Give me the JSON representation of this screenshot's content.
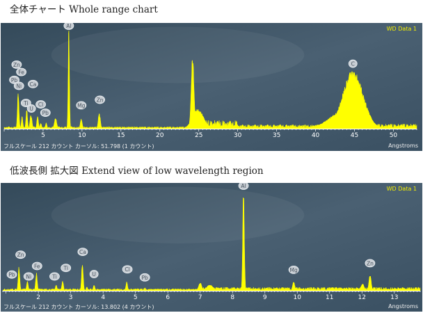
{
  "panels": [
    {
      "caption": "全体チャート Whole range chart",
      "tag": "WD Data 1",
      "status": "フルスケール 212 カウント カーソル: 51.798 (1 カウント)",
      "units": "Angstroms",
      "chart_data": {
        "type": "line",
        "xlim": [
          0,
          53
        ],
        "ylim": [
          0,
          212
        ],
        "x_ticks": [
          5,
          10,
          15,
          20,
          25,
          30,
          35,
          40,
          45,
          50
        ],
        "series": [
          {
            "peaks": [
              {
                "x": 1.8,
                "y": 75,
                "w": 0.1
              },
              {
                "x": 2.3,
                "y": 25,
                "w": 0.1
              },
              {
                "x": 2.9,
                "y": 40,
                "w": 0.1
              },
              {
                "x": 3.4,
                "y": 28,
                "w": 0.1
              },
              {
                "x": 3.5,
                "y": 25,
                "w": 0.1
              },
              {
                "x": 4.3,
                "y": 28,
                "w": 0.1
              },
              {
                "x": 4.7,
                "y": 12,
                "w": 0.1
              },
              {
                "x": 5.4,
                "y": 12,
                "w": 0.1
              },
              {
                "x": 6.6,
                "y": 22,
                "w": 0.15
              },
              {
                "x": 8.3,
                "y": 212,
                "w": 0.08
              },
              {
                "x": 9.9,
                "y": 20,
                "w": 0.12
              },
              {
                "x": 12.2,
                "y": 32,
                "w": 0.12
              },
              {
                "x": 12.3,
                "y": 24,
                "w": 0.1
              },
              {
                "x": 24.2,
                "y": 150,
                "w": 0.18
              },
              {
                "x": 24.9,
                "y": 40,
                "w": 0.7
              },
              {
                "x": 44.8,
                "y": 118,
                "w": 1.3
              },
              {
                "x": 44.0,
                "y": 40,
                "w": 2.0
              }
            ],
            "base": [
              {
                "from": 0,
                "to": 23.9,
                "level": 3
              },
              {
                "from": 24,
                "to": 30,
                "level": 12
              },
              {
                "from": 30,
                "to": 41,
                "level": 6
              },
              {
                "from": 41,
                "to": 53,
                "level": 7
              }
            ]
          }
        ],
        "labels": [
          {
            "text": "Zn",
            "x": 1.6,
            "y": 128
          },
          {
            "text": "Fe",
            "x": 2.2,
            "y": 112
          },
          {
            "text": "Pb",
            "x": 1.3,
            "y": 95
          },
          {
            "text": "Ni",
            "x": 1.9,
            "y": 82
          },
          {
            "text": "Ca",
            "x": 3.7,
            "y": 86
          },
          {
            "text": "Ti",
            "x": 2.8,
            "y": 45
          },
          {
            "text": "U",
            "x": 3.5,
            "y": 33
          },
          {
            "text": "Cl",
            "x": 4.7,
            "y": 42
          },
          {
            "text": "Pb",
            "x": 5.3,
            "y": 24
          },
          {
            "text": "Al",
            "x": 8.3,
            "y": 212
          },
          {
            "text": "Mg",
            "x": 9.9,
            "y": 40
          },
          {
            "text": "Zn",
            "x": 12.3,
            "y": 52
          },
          {
            "text": "C",
            "x": 44.8,
            "y": 130
          }
        ]
      }
    },
    {
      "caption": "低波長側 拡大図 Extend view of low wavelength region",
      "tag": "WD Data 1",
      "status": "フルスケール 212 カウント カーソル: 13.802 (4 カウント)",
      "units": "Angstroms",
      "chart_data": {
        "type": "line",
        "xlim": [
          0.9,
          13.8
        ],
        "ylim": [
          0,
          212
        ],
        "x_ticks": [
          2,
          3,
          4,
          5,
          6,
          7,
          8,
          9,
          10,
          11,
          12,
          13
        ],
        "series": [
          {
            "peaks": [
              {
                "x": 1.4,
                "y": 48,
                "w": 0.025
              },
              {
                "x": 1.66,
                "y": 20,
                "w": 0.025
              },
              {
                "x": 1.94,
                "y": 36,
                "w": 0.025
              },
              {
                "x": 2.55,
                "y": 12,
                "w": 0.025
              },
              {
                "x": 2.75,
                "y": 20,
                "w": 0.025
              },
              {
                "x": 3.36,
                "y": 58,
                "w": 0.025
              },
              {
                "x": 3.5,
                "y": 8,
                "w": 0.025
              },
              {
                "x": 3.72,
                "y": 12,
                "w": 0.025
              },
              {
                "x": 4.73,
                "y": 18,
                "w": 0.025
              },
              {
                "x": 5.29,
                "y": 6,
                "w": 0.025
              },
              {
                "x": 7.0,
                "y": 16,
                "w": 0.05
              },
              {
                "x": 7.3,
                "y": 12,
                "w": 0.1
              },
              {
                "x": 8.34,
                "y": 212,
                "w": 0.025
              },
              {
                "x": 9.89,
                "y": 18,
                "w": 0.035
              },
              {
                "x": 12.02,
                "y": 14,
                "w": 0.05
              },
              {
                "x": 12.25,
                "y": 32,
                "w": 0.035
              }
            ],
            "base": [
              {
                "from": 0.9,
                "to": 6.9,
                "level": 3
              },
              {
                "from": 6.9,
                "to": 13.8,
                "level": 5
              }
            ]
          }
        ],
        "labels": [
          {
            "text": "Pb",
            "x": 1.18,
            "y": 24
          },
          {
            "text": "Zn",
            "x": 1.45,
            "y": 66
          },
          {
            "text": "Ni",
            "x": 1.7,
            "y": 20
          },
          {
            "text": "Fe",
            "x": 1.96,
            "y": 42
          },
          {
            "text": "Ti",
            "x": 2.85,
            "y": 38
          },
          {
            "text": "Ti",
            "x": 2.5,
            "y": 20
          },
          {
            "text": "Ca",
            "x": 3.37,
            "y": 72
          },
          {
            "text": "U",
            "x": 3.72,
            "y": 25
          },
          {
            "text": "Cl",
            "x": 4.75,
            "y": 35
          },
          {
            "text": "Pb",
            "x": 5.29,
            "y": 18
          },
          {
            "text": "Al",
            "x": 8.34,
            "y": 212
          },
          {
            "text": "Mg",
            "x": 9.89,
            "y": 34
          },
          {
            "text": "Zn",
            "x": 12.25,
            "y": 48
          }
        ]
      }
    }
  ],
  "colors": {
    "trace": "#ffff00",
    "background": "#3f5566",
    "tag": "#f5f000",
    "label_fill": "#c8ced4"
  }
}
